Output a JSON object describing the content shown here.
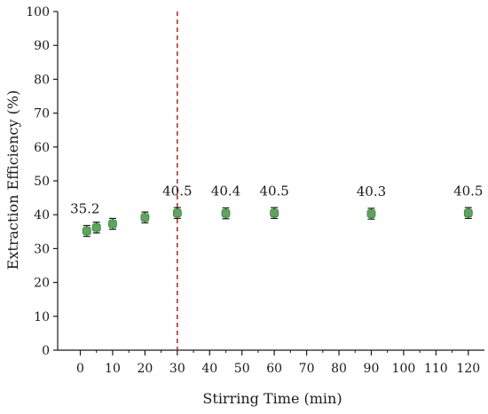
{
  "chart_data": {
    "type": "scatter",
    "xlabel": "Stirring Time (min)",
    "ylabel": "Extraction Efficiency (%)",
    "xlim": [
      -7,
      125
    ],
    "ylim": [
      0,
      100
    ],
    "x_ticks": [
      "0",
      "10",
      "20",
      "30",
      "40",
      "50",
      "60",
      "70",
      "80",
      "90",
      "100",
      "110",
      "120"
    ],
    "y_ticks": [
      "0",
      "10",
      "20",
      "30",
      "40",
      "50",
      "60",
      "70",
      "80",
      "90",
      "100"
    ],
    "points": [
      {
        "x": 2,
        "y": 35.2,
        "err": 1.6
      },
      {
        "x": 5,
        "y": 36.2,
        "err": 1.6
      },
      {
        "x": 10,
        "y": 37.3,
        "err": 1.6
      },
      {
        "x": 20,
        "y": 39.2,
        "err": 1.6
      },
      {
        "x": 30,
        "y": 40.5,
        "err": 1.6
      },
      {
        "x": 45,
        "y": 40.4,
        "err": 1.6
      },
      {
        "x": 60,
        "y": 40.5,
        "err": 1.6
      },
      {
        "x": 90,
        "y": 40.3,
        "err": 1.6
      },
      {
        "x": 120,
        "y": 40.5,
        "err": 1.6
      }
    ],
    "data_labels": [
      {
        "x": 2,
        "text": "35.2"
      },
      {
        "x": 30,
        "text": "40.5"
      },
      {
        "x": 45,
        "text": "40.4"
      },
      {
        "x": 60,
        "text": "40.5"
      },
      {
        "x": 90,
        "text": "40.3"
      },
      {
        "x": 120,
        "text": "40.5"
      }
    ],
    "reference_line_x": 30,
    "marker_color": "#5aa65a",
    "marker_edge_color": "#3f7f3f",
    "reference_line_color": "#b22222",
    "grid": false,
    "legend": "none"
  }
}
